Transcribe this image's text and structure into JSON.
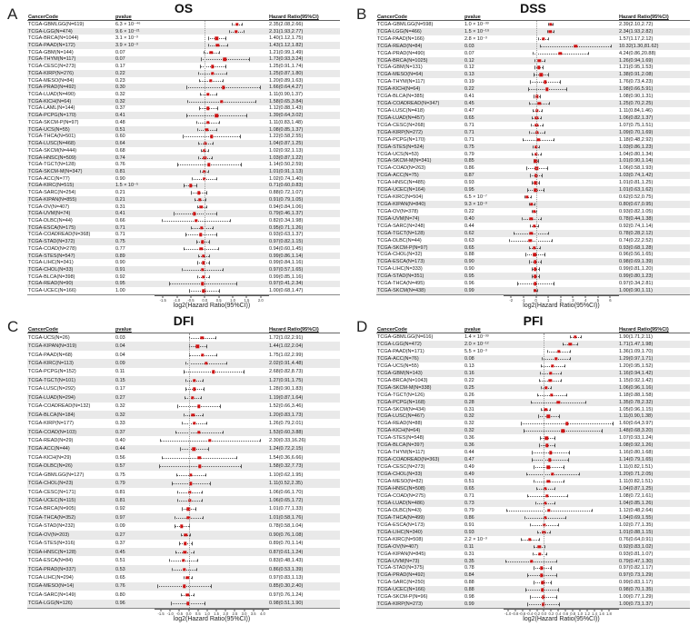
{
  "figure": {
    "axis_label": "log2(Hazard Ratio(95%CI))",
    "columns": {
      "cancer": "CancerCode",
      "pvalue": "pvalue",
      "hr": "Hazard Ratio(95%CI)"
    },
    "colors": {
      "point": "#cf1414",
      "ci_line": "#555555",
      "stripe": "#e9e9e9",
      "reference_line": "#999999"
    },
    "row_fields": [
      "code",
      "pvalue",
      "hr_ci"
    ]
  },
  "chart_data": [
    {
      "panel": "A",
      "label": "A",
      "type": "forest",
      "title": "OS",
      "xlim": [
        -1.8,
        2.3
      ],
      "ticks": [
        "-1.5",
        "-1.0",
        "-0.5",
        "0.0",
        "0.5",
        "1.0",
        "1.5",
        "2.0"
      ],
      "rows": [
        [
          "TCGA-GBMLGG(N=619)",
          "6.3 × 10⁻⁴⁶",
          "2.35(2.08,2.66)"
        ],
        [
          "TCGA-LGG(N=474)",
          "9.6 × 10⁻²¹",
          "2.31(1.93,2.77)"
        ],
        [
          "TCGA-BRCA(N=1044)",
          "3.1 × 10⁻³",
          "1.40(1.12,1.75)"
        ],
        [
          "TCGA-PAAD(N=172)",
          "3.9 × 10⁻³",
          "1.43(1.12,1.82)"
        ],
        [
          "TCGA-GBM(N=144)",
          "0.07",
          "1.21(0.99,1.49)"
        ],
        [
          "TCGA-THYM(N=117)",
          "0.07",
          "1.73(0.93,3.24)"
        ],
        [
          "TCGA-CESC(N=273)",
          "0.17",
          "1.25(0.91,1.74)"
        ],
        [
          "TCGA-KIRP(N=276)",
          "0.22",
          "1.25(0.87,1.80)"
        ],
        [
          "TCGA-MESO(N=84)",
          "0.23",
          "1.20(0.89,1.63)"
        ],
        [
          "TCGA-PRAD(N=492)",
          "0.30",
          "1.66(0.64,4.27)"
        ],
        [
          "TCGA-LUAD(N=490)",
          "0.32",
          "1.11(0.90,1.37)"
        ],
        [
          "TCGA-KICH(N=64)",
          "0.32",
          "1.58(0.65,3.84)"
        ],
        [
          "TCGA-LAML(N=144)",
          "0.37",
          "1.12(0.88,1.43)"
        ],
        [
          "TCGA-PCPG(N=170)",
          "0.41",
          "1.39(0.64,3.02)"
        ],
        [
          "TCGA-SKCM-P(N=97)",
          "0.48",
          "1.11(0.83,1.48)"
        ],
        [
          "TCGA-UCS(N=55)",
          "0.51",
          "1.08(0.85,1.37)"
        ],
        [
          "TCGA-THCA(N=501)",
          "0.60",
          "1.22(0.58,2.55)"
        ],
        [
          "TCGA-LUSC(N=468)",
          "0.64",
          "1.04(0.87,1.25)"
        ],
        [
          "TCGA-SKCM(N=444)",
          "0.68",
          "1.02(0.92,1.13)"
        ],
        [
          "TCGA-HNSC(N=509)",
          "0.74",
          "1.03(0.87,1.22)"
        ],
        [
          "TCGA-TGCT(N=128)",
          "0.76",
          "1.14(0.50,2.59)"
        ],
        [
          "TCGA-SKCM-M(N=347)",
          "0.81",
          "1.01(0.91,1.13)"
        ],
        [
          "TCGA-ACC(N=77)",
          "0.90",
          "1.02(0.74,1.40)"
        ],
        [
          "TCGA-KIRC(N=515)",
          "1.5 × 10⁻⁵",
          "0.71(0.60,0.83)"
        ],
        [
          "TCGA-SARC(N=254)",
          "0.21",
          "0.88(0.72,1.07)"
        ],
        [
          "TCGA-KIPAN(N=855)",
          "0.21",
          "0.91(0.79,1.05)"
        ],
        [
          "TCGA-OV(N=407)",
          "0.31",
          "0.94(0.84,1.06)"
        ],
        [
          "TCGA-UVM(N=74)",
          "0.41",
          "0.79(0.46,1.37)"
        ],
        [
          "TCGA-DLBC(N=44)",
          "0.66",
          "0.82(0.34,1.98)"
        ],
        [
          "TCGA-ESCA(N=175)",
          "0.71",
          "0.95(0.71,1.26)"
        ],
        [
          "TCGA-COADREAD(N=368)",
          "0.71",
          "0.93(0.63,1.37)"
        ],
        [
          "TCGA-STAD(N=372)",
          "0.75",
          "0.97(0.82,1.15)"
        ],
        [
          "TCGA-COAD(N=278)",
          "0.77",
          "0.94(0.60,1.45)"
        ],
        [
          "TCGA-STES(N=547)",
          "0.89",
          "0.99(0.86,1.14)"
        ],
        [
          "TCGA-LIHC(N=341)",
          "0.90",
          "0.99(0.84,1.16)"
        ],
        [
          "TCGA-CHOL(N=33)",
          "0.91",
          "0.97(0.57,1.65)"
        ],
        [
          "TCGA-BLCA(N=398)",
          "0.92",
          "0.99(0.85,1.16)"
        ],
        [
          "TCGA-READ(N=90)",
          "0.95",
          "0.97(0.41,2.34)"
        ],
        [
          "TCGA-UCEC(N=166)",
          "1.00",
          "1.00(0.68,1.47)"
        ]
      ]
    },
    {
      "panel": "B",
      "label": "B",
      "type": "forest",
      "title": "DSS",
      "xlim": [
        -2.6,
        6.7
      ],
      "ticks": [
        "-2",
        "-1",
        "0",
        "1",
        "2",
        "3",
        "4",
        "5",
        "6"
      ],
      "rows": [
        [
          "TCGA-GBMLGG(N=598)",
          "1.0 × 10⁻³³",
          "2.39(2.10,2.72)"
        ],
        [
          "TCGA-LGG(N=466)",
          "1.5 × 10⁻¹⁹",
          "2.34(1.93,2.82)"
        ],
        [
          "TCGA-PAAD(N=166)",
          "2.8 × 10⁻³",
          "1.57(1.17,2.12)"
        ],
        [
          "TCGA-READ(N=84)",
          "0.03",
          "10.32(1.30,81.62)"
        ],
        [
          "TCGA-PRAD(N=490)",
          "0.07",
          "4.24(0.86,20.88)"
        ],
        [
          "TCGA-BRCA(N=1025)",
          "0.12",
          "1.26(0.94,1.69)"
        ],
        [
          "TCGA-GBM(N=131)",
          "0.12",
          "1.21(0.95,1.53)"
        ],
        [
          "TCGA-MESO(N=64)",
          "0.13",
          "1.38(0.91,2.08)"
        ],
        [
          "TCGA-THYM(N=117)",
          "0.19",
          "1.76(0.73,4.23)"
        ],
        [
          "TCGA-KICH(N=64)",
          "0.22",
          "1.98(0.66,5.91)"
        ],
        [
          "TCGA-BLCA(N=385)",
          "0.41",
          "1.08(0.90,1.31)"
        ],
        [
          "TCGA-COADREAD(N=347)",
          "0.45",
          "1.25(0.70,2.25)"
        ],
        [
          "TCGA-LUSC(N=418)",
          "0.47",
          "1.11(0.84,1.46)"
        ],
        [
          "TCGA-LUAD(N=457)",
          "0.65",
          "1.06(0.82,1.37)"
        ],
        [
          "TCGA-CESC(N=268)",
          "0.71",
          "1.07(0.75,1.51)"
        ],
        [
          "TCGA-KIRP(N=272)",
          "0.71",
          "1.09(0.70,1.69)"
        ],
        [
          "TCGA-PCPG(N=170)",
          "0.71",
          "1.18(0.48,2.92)"
        ],
        [
          "TCGA-STES(N=524)",
          "0.75",
          "1.03(0.86,1.23)"
        ],
        [
          "TCGA-UCS(N=53)",
          "0.79",
          "1.04(0.80,1.34)"
        ],
        [
          "TCGA-SKCM-M(N=341)",
          "0.85",
          "1.01(0.90,1.14)"
        ],
        [
          "TCGA-COAD(N=263)",
          "0.86",
          "1.06(0.58,1.93)"
        ],
        [
          "TCGA-ACC(N=75)",
          "0.87",
          "1.03(0.74,1.42)"
        ],
        [
          "TCGA-HNSC(N=485)",
          "0.93",
          "1.01(0.81,1.25)"
        ],
        [
          "TCGA-UCEC(N=164)",
          "0.95",
          "1.01(0.63,1.62)"
        ],
        [
          "TCGA-KIRC(N=504)",
          "6.5 × 10⁻⁷",
          "0.62(0.52,0.75)"
        ],
        [
          "TCGA-KIPAN(N=840)",
          "9.3 × 10⁻³",
          "0.80(0.67,0.95)"
        ],
        [
          "TCGA-OV(N=378)",
          "0.22",
          "0.93(0.82,1.05)"
        ],
        [
          "TCGA-UVM(N=74)",
          "0.40",
          "0.78(0.44,1.38)"
        ],
        [
          "TCGA-SARC(N=248)",
          "0.44",
          "0.92(0.74,1.14)"
        ],
        [
          "TCGA-TGCT(N=128)",
          "0.62",
          "0.78(0.28,2.12)"
        ],
        [
          "TCGA-DLBC(N=44)",
          "0.63",
          "0.74(0.22,2.52)"
        ],
        [
          "TCGA-SKCM-P(N=97)",
          "0.65",
          "0.93(0.68,1.28)"
        ],
        [
          "TCGA-CHOL(N=32)",
          "0.88",
          "0.96(0.56,1.65)"
        ],
        [
          "TCGA-ESCA(N=173)",
          "0.90",
          "0.98(0.69,1.39)"
        ],
        [
          "TCGA-LIHC(N=333)",
          "0.90",
          "0.99(0.81,1.20)"
        ],
        [
          "TCGA-STAD(N=351)",
          "0.95",
          "0.99(0.80,1.23)"
        ],
        [
          "TCGA-THCA(N=495)",
          "0.96",
          "0.97(0.34,2.81)"
        ],
        [
          "TCGA-SKCM(N=438)",
          "0.99",
          "1.00(0.90,1.11)"
        ]
      ]
    },
    {
      "panel": "C",
      "label": "C",
      "type": "forest",
      "title": "DFI",
      "xlim": [
        -1.85,
        4.35
      ],
      "ticks": [
        "-1.5",
        "-1.0",
        "-0.5",
        "0.0",
        "0.5",
        "1.0",
        "1.5",
        "2.0",
        "2.5",
        "3.0",
        "3.5",
        "4.0"
      ],
      "rows": [
        [
          "TCGA-UCS(N=26)",
          "0.03",
          "1.72(1.02,2.91)"
        ],
        [
          "TCGA-KIPAN(N=319)",
          "0.04",
          "1.44(1.02,2.04)"
        ],
        [
          "TCGA-PAAD(N=68)",
          "0.04",
          "1.75(1.02,2.99)"
        ],
        [
          "TCGA-KIRC(N=113)",
          "0.09",
          "2.02(0.91,4.48)"
        ],
        [
          "TCGA-PCPG(N=152)",
          "0.11",
          "2.68(0.82,8.73)"
        ],
        [
          "TCGA-TGCT(N=101)",
          "0.15",
          "1.27(0.91,1.75)"
        ],
        [
          "TCGA-LUSC(N=292)",
          "0.17",
          "1.28(0.90,1.83)"
        ],
        [
          "TCGA-LUAD(N=294)",
          "0.27",
          "1.19(0.87,1.64)"
        ],
        [
          "TCGA-COADREAD(N=132)",
          "0.32",
          "1.52(0.66,3.46)"
        ],
        [
          "TCGA-BLCA(N=184)",
          "0.32",
          "1.20(0.83,1.73)"
        ],
        [
          "TCGA-KIRP(N=177)",
          "0.33",
          "1.26(0.79,2.01)"
        ],
        [
          "TCGA-COAD(N=103)",
          "0.37",
          "1.53(0.60,3.88)"
        ],
        [
          "TCGA-READ(N=29)",
          "0.40",
          "2.30(0.33,16.26)"
        ],
        [
          "TCGA-ACC(N=44)",
          "0.44",
          "1.24(0.72,2.15)"
        ],
        [
          "TCGA-KICH(N=29)",
          "0.56",
          "1.54(0.36,6.66)"
        ],
        [
          "TCGA-DLBC(N=26)",
          "0.57",
          "1.58(0.32,7.73)"
        ],
        [
          "TCGA-GBMLGG(N=127)",
          "0.75",
          "1.10(0.62,1.95)"
        ],
        [
          "TCGA-CHOL(N=23)",
          "0.79",
          "1.11(0.52,2.35)"
        ],
        [
          "TCGA-CESC(N=171)",
          "0.81",
          "1.06(0.66,1.70)"
        ],
        [
          "TCGA-UCEC(N=115)",
          "0.81",
          "1.06(0.65,1.72)"
        ],
        [
          "TCGA-BRCA(N=905)",
          "0.92",
          "1.01(0.77,1.33)"
        ],
        [
          "TCGA-THCA(N=352)",
          "0.97",
          "1.01(0.58,1.76)"
        ],
        [
          "TCGA-STAD(N=232)",
          "0.09",
          "0.78(0.58,1.04)"
        ],
        [
          "TCGA-OV(N=203)",
          "0.27",
          "0.90(0.76,1.08)"
        ],
        [
          "TCGA-STES(N=316)",
          "0.37",
          "0.89(0.70,1.14)"
        ],
        [
          "TCGA-HNSC(N=128)",
          "0.45",
          "0.87(0.61,1.24)"
        ],
        [
          "TCGA-ESCA(N=84)",
          "0.51",
          "0.83(0.48,1.43)"
        ],
        [
          "TCGA-PRAD(N=337)",
          "0.53",
          "0.86(0.53,1.39)"
        ],
        [
          "TCGA-LIHC(N=294)",
          "0.65",
          "0.97(0.83,1.13)"
        ],
        [
          "TCGA-MESO(N=14)",
          "0.76",
          "0.85(0.30,2.40)"
        ],
        [
          "TCGA-SARC(N=149)",
          "0.80",
          "0.97(0.76,1.24)"
        ],
        [
          "TCGA-LGG(N=126)",
          "0.96",
          "0.98(0.51,1.90)"
        ]
      ]
    },
    {
      "panel": "D",
      "label": "D",
      "type": "forest",
      "title": "PFI",
      "xlim": [
        -1.12,
        2.08
      ],
      "ticks": [
        "-1.0",
        "-0.8",
        "-0.6",
        "-0.4",
        "-0.2",
        "0.0",
        "0.2",
        "0.4",
        "0.6",
        "0.8",
        "1.0",
        "1.2",
        "1.4",
        "1.6",
        "1.8"
      ],
      "rows": [
        [
          "TCGA-GBMLGG(N=616)",
          "1.4 × 10⁻³³",
          "1.90(1.71,2.11)"
        ],
        [
          "TCGA-LGG(N=472)",
          "2.0 × 10⁻¹²",
          "1.71(1.47,1.98)"
        ],
        [
          "TCGA-PAAD(N=171)",
          "5.5 × 10⁻³",
          "1.36(1.09,1.70)"
        ],
        [
          "TCGA-ACC(N=76)",
          "0.08",
          "1.29(0.97,1.71)"
        ],
        [
          "TCGA-UCS(N=55)",
          "0.13",
          "1.20(0.95,1.52)"
        ],
        [
          "TCGA-GBM(N=143)",
          "0.16",
          "1.16(0.94,1.42)"
        ],
        [
          "TCGA-BRCA(N=1043)",
          "0.22",
          "1.15(0.92,1.42)"
        ],
        [
          "TCGA-SKCM-M(N=338)",
          "0.25",
          "1.06(0.96,1.16)"
        ],
        [
          "TCGA-TGCT(N=126)",
          "0.26",
          "1.18(0.88,1.58)"
        ],
        [
          "TCGA-PCPG(N=168)",
          "0.28",
          "1.35(0.78,2.32)"
        ],
        [
          "TCGA-SKCM(N=434)",
          "0.31",
          "1.05(0.96,1.15)"
        ],
        [
          "TCGA-LUSC(N=467)",
          "0.32",
          "1.11(0.90,1.38)"
        ],
        [
          "TCGA-READ(N=88)",
          "0.32",
          "1.60(0.64,3.97)"
        ],
        [
          "TCGA-KICH(N=64)",
          "0.32",
          "1.48(0.68,3.20)"
        ],
        [
          "TCGA-STES(N=548)",
          "0.36",
          "1.07(0.93,1.24)"
        ],
        [
          "TCGA-BLCA(N=397)",
          "0.36",
          "1.08(0.92,1.26)"
        ],
        [
          "TCGA-THYM(N=117)",
          "0.44",
          "1.16(0.80,1.68)"
        ],
        [
          "TCGA-COADREAD(N=363)",
          "0.47",
          "1.14(0.79,1.65)"
        ],
        [
          "TCGA-CESC(N=273)",
          "0.49",
          "1.11(0.82,1.51)"
        ],
        [
          "TCGA-CHOL(N=33)",
          "0.49",
          "1.20(0.71,2.05)"
        ],
        [
          "TCGA-MESO(N=82)",
          "0.51",
          "1.11(0.82,1.51)"
        ],
        [
          "TCGA-HNSC(N=508)",
          "0.65",
          "1.04(0.87,1.25)"
        ],
        [
          "TCGA-COAD(N=275)",
          "0.71",
          "1.08(0.72,1.61)"
        ],
        [
          "TCGA-LUAD(N=486)",
          "0.73",
          "1.04(0.85,1.26)"
        ],
        [
          "TCGA-DLBC(N=43)",
          "0.79",
          "1.12(0.48,2.64)"
        ],
        [
          "TCGA-THCA(N=499)",
          "0.86",
          "1.04(0.69,1.55)"
        ],
        [
          "TCGA-ESCA(N=173)",
          "0.91",
          "1.02(0.77,1.35)"
        ],
        [
          "TCGA-LIHC(N=340)",
          "0.93",
          "1.01(0.88,1.15)"
        ],
        [
          "TCGA-KIRC(N=508)",
          "2.2 × 10⁻³",
          "0.76(0.64,0.91)"
        ],
        [
          "TCGA-OV(N=407)",
          "0.11",
          "0.92(0.83,1.02)"
        ],
        [
          "TCGA-KIPAN(N=845)",
          "0.31",
          "0.93(0.81,1.07)"
        ],
        [
          "TCGA-UVM(N=73)",
          "0.35",
          "0.79(0.47,1.30)"
        ],
        [
          "TCGA-STAD(N=375)",
          "0.78",
          "0.97(0.82,1.17)"
        ],
        [
          "TCGA-PRAD(N=492)",
          "0.84",
          "0.97(0.73,1.29)"
        ],
        [
          "TCGA-SARC(N=250)",
          "0.88",
          "0.99(0.83,1.17)"
        ],
        [
          "TCGA-UCEC(N=166)",
          "0.88",
          "0.98(0.70,1.35)"
        ],
        [
          "TCGA-SKCM-P(N=96)",
          "0.98",
          "1.00(0.77,1.29)"
        ],
        [
          "TCGA-KIRP(N=273)",
          "0.99",
          "1.00(0.73,1.37)"
        ]
      ]
    }
  ]
}
